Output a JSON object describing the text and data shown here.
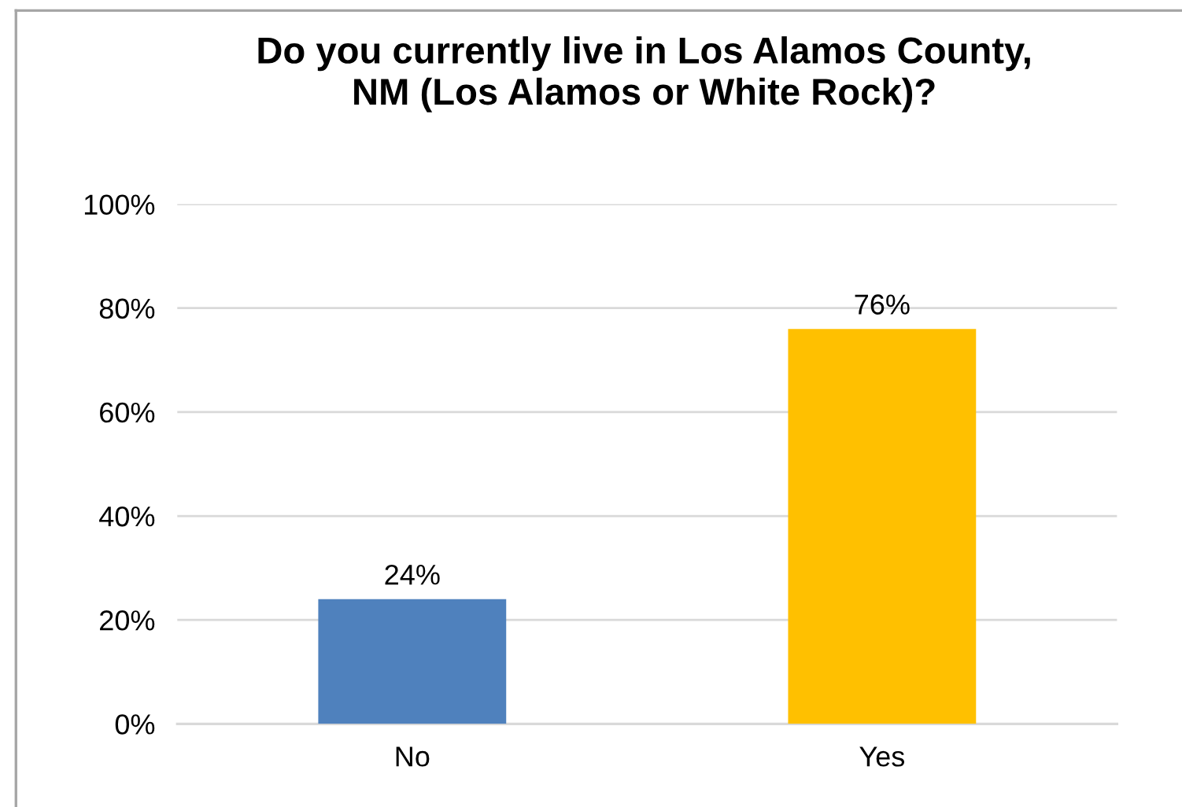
{
  "chart_data": {
    "type": "bar",
    "title": "Do you currently live in Los Alamos County,\nNM (Los Alamos or White Rock)?",
    "categories": [
      "No",
      "Yes"
    ],
    "values": [
      24,
      76
    ],
    "colors": [
      "#4f81bd",
      "#ffc000"
    ],
    "value_labels": [
      "24%",
      "76%"
    ],
    "ylim": [
      0,
      100
    ],
    "yticks": [
      {
        "value": 0,
        "label": "0%"
      },
      {
        "value": 20,
        "label": "20%"
      },
      {
        "value": 40,
        "label": "40%"
      },
      {
        "value": 60,
        "label": "60%"
      },
      {
        "value": 80,
        "label": "80%"
      },
      {
        "value": 100,
        "label": "100%"
      }
    ],
    "grid": "y",
    "legend": false
  }
}
